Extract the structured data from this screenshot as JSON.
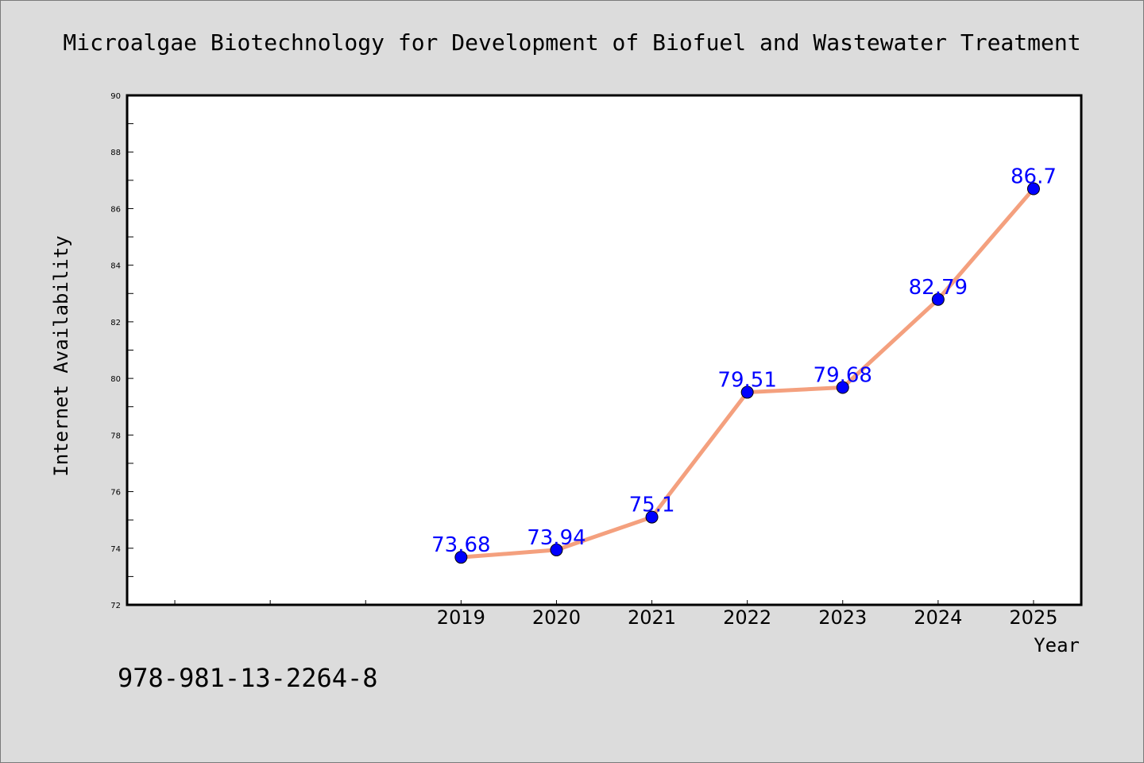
{
  "chart_data": {
    "type": "line",
    "title": "Microalgae Biotechnology for Development of Biofuel and Wastewater Treatment",
    "xlabel": "Year",
    "ylabel": "Internet Availability",
    "categories": [
      "2019",
      "2020",
      "2021",
      "2022",
      "2023",
      "2024",
      "2025"
    ],
    "series": [
      {
        "values": [
          73.68,
          73.94,
          75.1,
          79.51,
          79.68,
          82.79,
          86.7
        ],
        "data_labels": [
          "73.68",
          "73.94",
          "75.1",
          "79.51",
          "79.68",
          "82.79",
          "86.7"
        ]
      }
    ],
    "x_slots": 10,
    "first_category_slot": 3,
    "ylim": [
      72,
      90
    ],
    "y_ticks": [
      "72",
      "74",
      "76",
      "78",
      "80",
      "82",
      "84",
      "86",
      "88",
      "90"
    ],
    "grid": false,
    "legend": "none",
    "colors": {
      "line": "#f4a07e",
      "marker": "#0000ff",
      "data_label": "#0000ff",
      "plot_background": "#ffffff",
      "figure_background": "#dcdcdc"
    }
  },
  "footer": {
    "isbn": "978-981-13-2264-8"
  }
}
